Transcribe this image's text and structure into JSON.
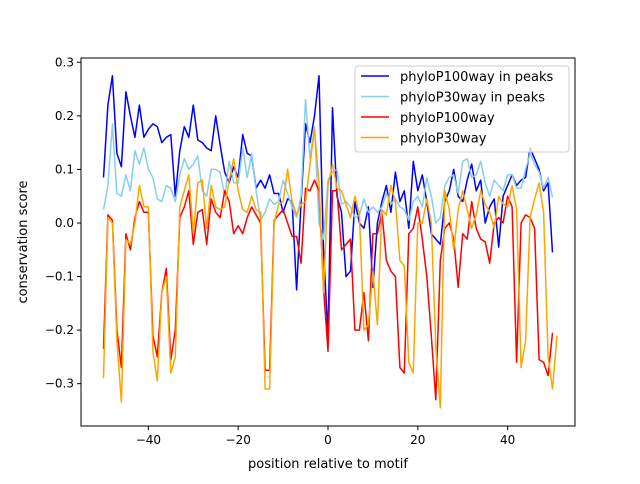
{
  "chart_data": {
    "type": "line",
    "title": "",
    "xlabel": "position relative to motif",
    "ylabel": "conservation score",
    "xlim": [
      -55,
      55
    ],
    "ylim": [
      -0.379,
      0.308
    ],
    "xticks": [
      -40,
      -20,
      0,
      20,
      40
    ],
    "xtick_labels": [
      "−40",
      "−20",
      "0",
      "20",
      "40"
    ],
    "yticks": [
      0.3,
      0.2,
      0.1,
      0.0,
      -0.1,
      -0.2,
      -0.3
    ],
    "ytick_labels": [
      "0.3",
      "0.2",
      "0.1",
      "0.0",
      "−0.1",
      "−0.2",
      "−0.3"
    ],
    "grid": false,
    "legend_position": "top-right",
    "x_start": -50,
    "x_step": 1,
    "series": [
      {
        "name": "phyloP100way in peaks",
        "color": "#0000ff",
        "values": [
          0.085,
          0.22,
          0.275,
          0.13,
          0.105,
          0.245,
          0.2,
          0.16,
          0.22,
          0.16,
          0.175,
          0.185,
          0.18,
          0.15,
          0.16,
          0.165,
          0.05,
          0.135,
          0.18,
          0.16,
          0.22,
          0.155,
          0.15,
          0.14,
          0.135,
          0.2,
          0.145,
          0.095,
          0.075,
          0.105,
          0.085,
          0.165,
          0.13,
          0.125,
          0.065,
          0.08,
          0.065,
          0.09,
          0.055,
          0.055,
          0.02,
          0.045,
          0.04,
          -0.125,
          0.04,
          0.185,
          0.15,
          0.2,
          0.275,
          -0.05,
          -0.21,
          0.215,
          0.05,
          0.02,
          -0.1,
          -0.09,
          0.04,
          0.0,
          -0.01,
          0.03,
          -0.12,
          0.0,
          0.04,
          0.07,
          0.02,
          0.095,
          0.04,
          0.06,
          -0.01,
          0.115,
          0.06,
          0.09,
          0.04,
          -0.02,
          -0.03,
          -0.04,
          0.04,
          0.06,
          0.1,
          0.05,
          0.04,
          0.08,
          0.11,
          0.06,
          0.08,
          0.0,
          0.03,
          0.045,
          -0.045,
          0.05,
          0.07,
          0.09,
          0.07,
          0.08,
          0.085,
          0.14,
          0.12,
          0.1,
          0.06,
          0.075,
          -0.055
        ]
      },
      {
        "name": "phyloP30way in peaks",
        "color": "#87ceeb",
        "values": [
          0.025,
          0.07,
          0.185,
          0.055,
          0.05,
          0.09,
          0.06,
          0.135,
          0.11,
          0.14,
          0.1,
          0.085,
          0.045,
          0.04,
          0.07,
          0.065,
          0.04,
          0.09,
          0.12,
          0.1,
          0.11,
          0.125,
          0.06,
          0.05,
          0.1,
          0.1,
          0.095,
          0.05,
          0.115,
          0.075,
          0.075,
          0.14,
          0.085,
          0.13,
          0.06,
          0.005,
          0.02,
          0.045,
          0.035,
          0.04,
          0.08,
          0.055,
          0.03,
          0.01,
          0.05,
          0.23,
          0.12,
          0.18,
          0.0,
          -0.03,
          0.08,
          0.095,
          0.1,
          0.035,
          0.04,
          0.03,
          0.01,
          0.015,
          0.045,
          0.02,
          0.03,
          0.02,
          0.03,
          0.055,
          0.035,
          0.045,
          0.03,
          0.025,
          0.005,
          0.04,
          0.05,
          0.03,
          0.085,
          0.05,
          0.0,
          0.01,
          0.07,
          0.085,
          0.09,
          0.055,
          0.115,
          0.12,
          0.085,
          0.09,
          0.115,
          0.075,
          0.05,
          0.08,
          0.07,
          0.06,
          0.09,
          0.09,
          0.065,
          0.065,
          0.1,
          0.13,
          0.11,
          0.095,
          0.065,
          0.085,
          0.048
        ]
      },
      {
        "name": "phyloP100way",
        "color": "#ff0000",
        "values": [
          -0.235,
          0.015,
          0.005,
          -0.2,
          -0.27,
          -0.02,
          -0.05,
          0.01,
          0.04,
          0.02,
          0.02,
          -0.21,
          -0.25,
          -0.13,
          -0.085,
          -0.255,
          -0.2,
          0.01,
          0.03,
          0.06,
          -0.04,
          0.02,
          0.025,
          -0.04,
          0.045,
          0.02,
          0.01,
          0.06,
          0.04,
          -0.02,
          -0.005,
          -0.02,
          0.01,
          0.03,
          0.015,
          0.0,
          -0.275,
          -0.275,
          0.005,
          0.015,
          0.025,
          0.0,
          -0.025,
          -0.025,
          -0.075,
          0.065,
          0.06,
          0.08,
          0.06,
          -0.12,
          -0.24,
          0.06,
          0.06,
          -0.05,
          -0.04,
          -0.03,
          -0.2,
          -0.2,
          -0.13,
          -0.22,
          -0.02,
          -0.02,
          0.02,
          -0.07,
          -0.09,
          -0.1,
          -0.27,
          -0.28,
          -0.02,
          -0.01,
          0.03,
          -0.03,
          -0.1,
          -0.21,
          -0.33,
          -0.07,
          -0.01,
          0.0,
          -0.03,
          -0.12,
          -0.02,
          -0.03,
          0.04,
          -0.01,
          -0.03,
          -0.035,
          -0.075,
          0.0,
          0.01,
          0.0,
          0.05,
          0.03,
          -0.26,
          0.0,
          0.015,
          0.01,
          -0.01,
          -0.255,
          -0.26,
          -0.285,
          -0.205
        ]
      },
      {
        "name": "phyloP30way",
        "color": "#ffa500",
        "values": [
          -0.29,
          0.01,
          0.0,
          -0.22,
          -0.335,
          -0.03,
          -0.04,
          0.0,
          0.07,
          0.03,
          0.03,
          -0.24,
          -0.295,
          -0.13,
          -0.1,
          -0.28,
          -0.25,
          0.03,
          0.06,
          0.09,
          -0.02,
          0.075,
          0.08,
          -0.01,
          0.07,
          0.03,
          0.025,
          0.03,
          0.08,
          0.12,
          0.06,
          0.025,
          0.02,
          0.05,
          0.025,
          0.02,
          -0.31,
          -0.31,
          0.0,
          0.035,
          0.04,
          0.1,
          0.04,
          0.015,
          0.035,
          0.04,
          0.11,
          0.175,
          0.075,
          -0.13,
          0.07,
          0.11,
          0.065,
          0.06,
          0.035,
          0.01,
          0.05,
          0.015,
          -0.2,
          -0.19,
          -0.09,
          -0.19,
          0.025,
          0.015,
          0.07,
          0.04,
          -0.07,
          -0.08,
          -0.26,
          -0.28,
          0.0,
          0.0,
          0.045,
          0.0,
          -0.23,
          -0.345,
          0.06,
          0.025,
          -0.05,
          0.025,
          0.06,
          0.025,
          -0.01,
          0.015,
          0.06,
          0.035,
          0.02,
          -0.01,
          0.05,
          0.035,
          0.03,
          0.07,
          0.025,
          -0.27,
          -0.22,
          0.01,
          0.045,
          0.075,
          0.02,
          -0.25,
          -0.31,
          -0.21
        ]
      }
    ]
  }
}
